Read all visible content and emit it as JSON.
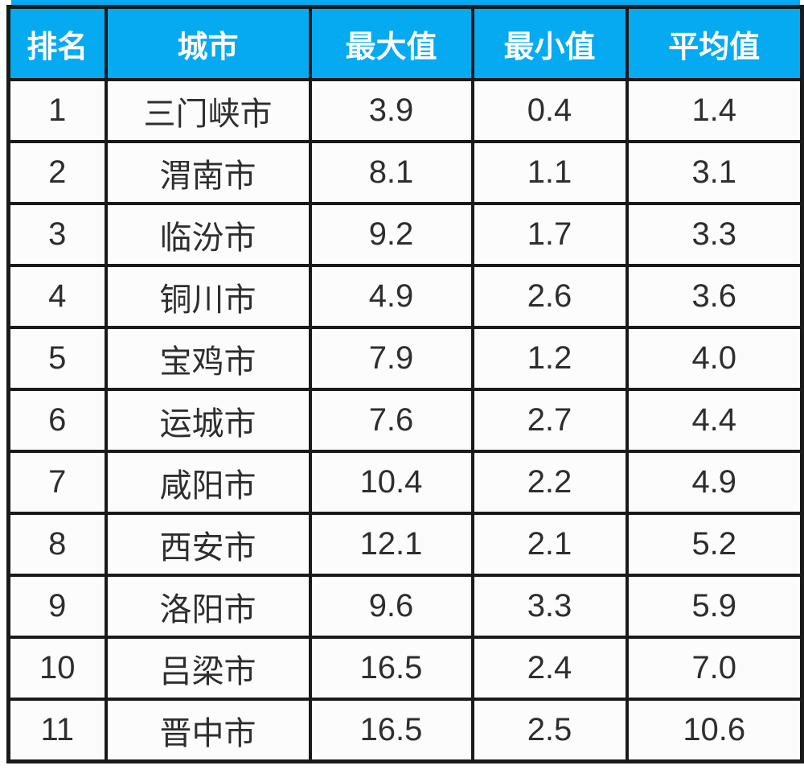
{
  "colors": {
    "header_bg": "#05aaf0",
    "header_text": "#ffffff",
    "border": "#1a1a1a",
    "cell_text": "#2e2e2e",
    "cell_bg": "#fcfcfc"
  },
  "table": {
    "headers": [
      "排名",
      "城市",
      "最大值",
      "最小值",
      "平均值"
    ],
    "rows": [
      [
        "1",
        "三门峡市",
        "3.9",
        "0.4",
        "1.4"
      ],
      [
        "2",
        "渭南市",
        "8.1",
        "1.1",
        "3.1"
      ],
      [
        "3",
        "临汾市",
        "9.2",
        "1.7",
        "3.3"
      ],
      [
        "4",
        "铜川市",
        "4.9",
        "2.6",
        "3.6"
      ],
      [
        "5",
        "宝鸡市",
        "7.9",
        "1.2",
        "4.0"
      ],
      [
        "6",
        "运城市",
        "7.6",
        "2.7",
        "4.4"
      ],
      [
        "7",
        "咸阳市",
        "10.4",
        "2.2",
        "4.9"
      ],
      [
        "8",
        "西安市",
        "12.1",
        "2.1",
        "5.2"
      ],
      [
        "9",
        "洛阳市",
        "9.6",
        "3.3",
        "5.9"
      ],
      [
        "10",
        "吕梁市",
        "16.5",
        "2.4",
        "7.0"
      ],
      [
        "11",
        "晋中市",
        "16.5",
        "2.5",
        "10.6"
      ]
    ]
  },
  "chart_data": {
    "type": "table",
    "title": "",
    "columns": [
      "排名",
      "城市",
      "最大值",
      "最小值",
      "平均值"
    ],
    "rows": [
      [
        1,
        "三门峡市",
        3.9,
        0.4,
        1.4
      ],
      [
        2,
        "渭南市",
        8.1,
        1.1,
        3.1
      ],
      [
        3,
        "临汾市",
        9.2,
        1.7,
        3.3
      ],
      [
        4,
        "铜川市",
        4.9,
        2.6,
        3.6
      ],
      [
        5,
        "宝鸡市",
        7.9,
        1.2,
        4.0
      ],
      [
        6,
        "运城市",
        7.6,
        2.7,
        4.4
      ],
      [
        7,
        "咸阳市",
        10.4,
        2.2,
        4.9
      ],
      [
        8,
        "西安市",
        12.1,
        2.1,
        5.2
      ],
      [
        9,
        "洛阳市",
        9.6,
        3.3,
        5.9
      ],
      [
        10,
        "吕梁市",
        16.5,
        2.4,
        7.0
      ],
      [
        11,
        "晋中市",
        16.5,
        2.5,
        10.6
      ]
    ],
    "layout": {
      "header_position": "top",
      "grid": true,
      "header_color": "#05aaf0",
      "sorted_by": "平均值 ascending"
    }
  }
}
